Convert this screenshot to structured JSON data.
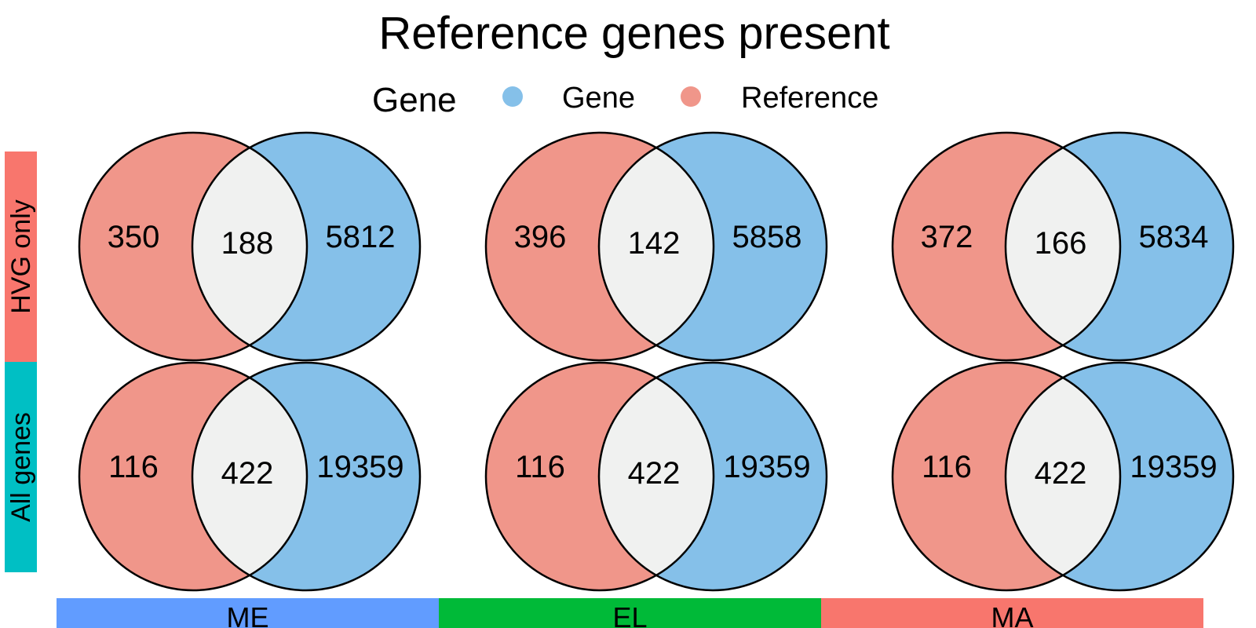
{
  "title": "Reference genes present",
  "legend": {
    "title": "Gene",
    "items": [
      {
        "label": "Gene",
        "color": "#85C0E9"
      },
      {
        "label": "Reference",
        "color": "#F0968A"
      }
    ]
  },
  "colors": {
    "reference": "#F0968A",
    "gene": "#85C0E9",
    "intersection": "#F0F1F0",
    "row_strip_hvg": "#F8766D",
    "row_strip_all": "#00BFC4",
    "col_strip_me": "#619CFF",
    "col_strip_el": "#00BA38",
    "col_strip_ma": "#F8766D"
  },
  "rows": [
    {
      "label": "HVG only"
    },
    {
      "label": "All genes"
    }
  ],
  "columns": [
    {
      "label": "ME"
    },
    {
      "label": "EL"
    },
    {
      "label": "MA"
    }
  ],
  "panels": [
    [
      {
        "reference_only": "350",
        "both": "188",
        "gene_only": "5812"
      },
      {
        "reference_only": "396",
        "both": "142",
        "gene_only": "5858"
      },
      {
        "reference_only": "372",
        "both": "166",
        "gene_only": "5834"
      }
    ],
    [
      {
        "reference_only": "116",
        "both": "422",
        "gene_only": "19359"
      },
      {
        "reference_only": "116",
        "both": "422",
        "gene_only": "19359"
      },
      {
        "reference_only": "116",
        "both": "422",
        "gene_only": "19359"
      }
    ]
  ]
}
